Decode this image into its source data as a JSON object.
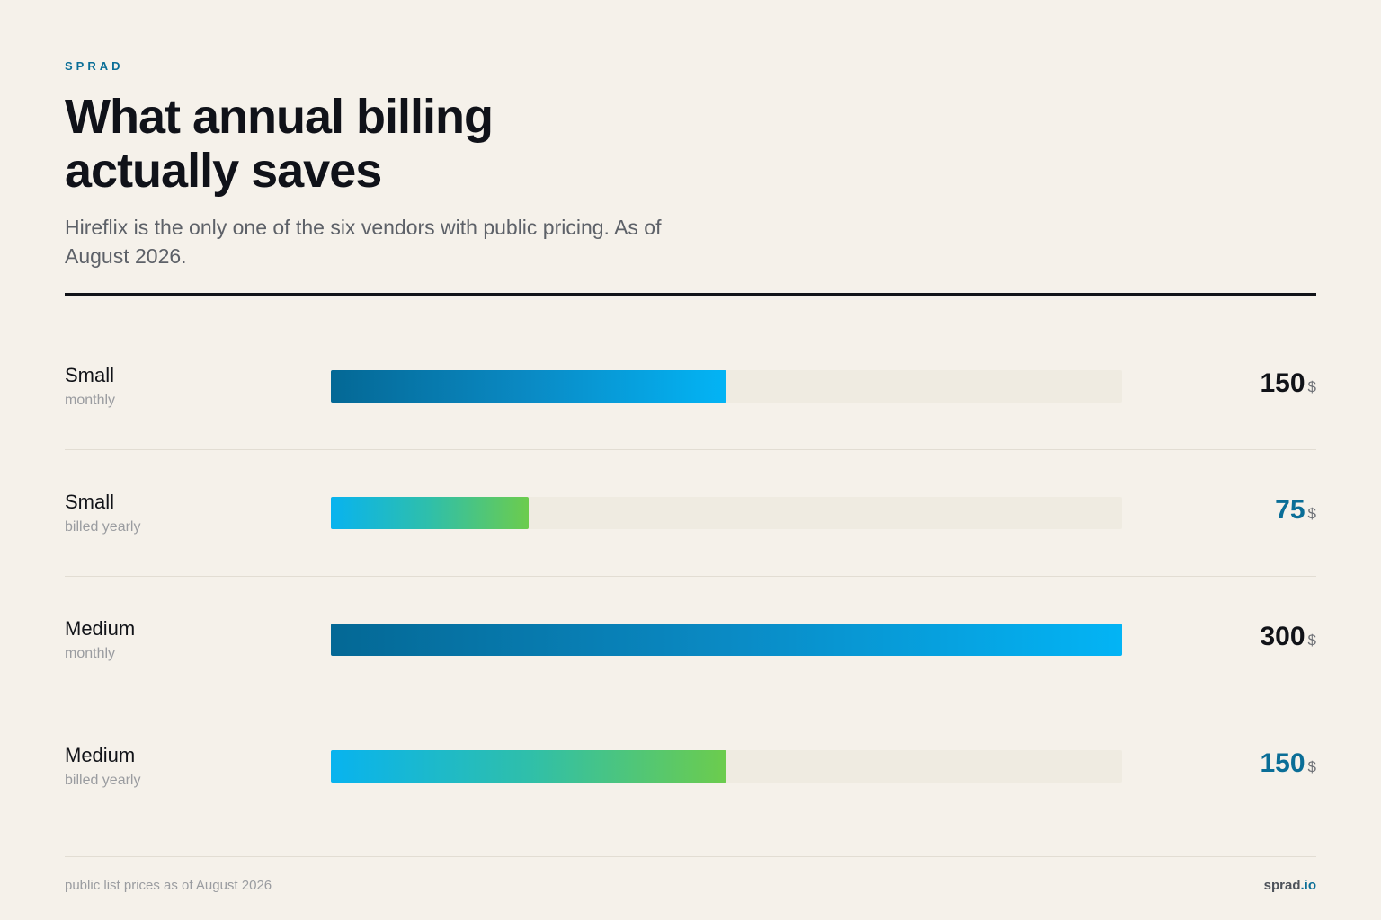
{
  "brand": "SPRAD",
  "header": {
    "title": "What annual billing actually saves",
    "subtitle": "Hireflix is the only one of the six vendors with public pricing. As of August 2026."
  },
  "colors": {
    "monthly_gradient": [
      "#046895",
      "#03b4f5"
    ],
    "yearly_gradient": [
      "#08b3ef",
      "#6ccc4d"
    ],
    "accent": "#0a6e97",
    "track": "#efebe1",
    "background": "#f5f1ea"
  },
  "chart_data": {
    "type": "bar",
    "orientation": "horizontal",
    "xlim": [
      0,
      300
    ],
    "grid": false,
    "unit": "$",
    "categories": [
      "Small",
      "Small",
      "Medium",
      "Medium"
    ],
    "sublabels": [
      "monthly",
      "billed yearly",
      "monthly",
      "billed yearly"
    ],
    "values": [
      150,
      75,
      300,
      150
    ],
    "styles": [
      "monthly",
      "yearly",
      "monthly",
      "yearly"
    ]
  },
  "footer": {
    "note": "public list prices as of August 2026",
    "site_name": "sprad",
    "site_tld": ".io"
  }
}
